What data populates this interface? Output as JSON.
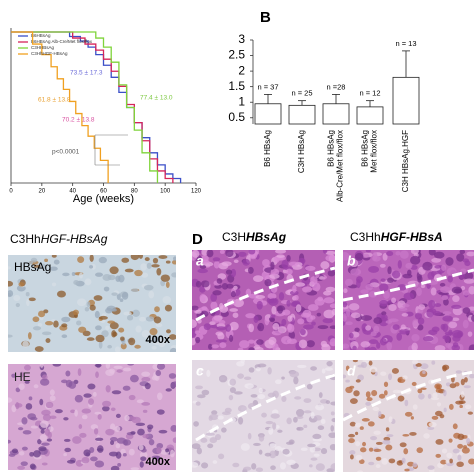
{
  "chart_data": [
    {
      "type": "line",
      "step": true,
      "x_label": "Age (weeks)",
      "xlim": [
        0,
        120
      ],
      "xticks": [
        0,
        20,
        40,
        60,
        80,
        100,
        120
      ],
      "ylim": [
        0,
        100
      ],
      "series": [
        {
          "name": "B6HBsAg",
          "color": "#3b4fc8",
          "x": [
            0,
            38,
            45,
            50,
            55,
            60,
            65,
            70,
            75,
            80,
            85,
            90,
            95,
            100,
            105,
            110
          ],
          "values": [
            100,
            97,
            94,
            90,
            85,
            78,
            70,
            60,
            50,
            40,
            30,
            20,
            12,
            6,
            3,
            0
          ]
        },
        {
          "name": "B6HBsAg Alb-Cre/Met flox/flox",
          "color": "#d6245a",
          "x": [
            0,
            40,
            48,
            55,
            60,
            65,
            70,
            75,
            80,
            85,
            90,
            95,
            100,
            105
          ],
          "values": [
            100,
            96,
            92,
            88,
            82,
            74,
            64,
            52,
            40,
            28,
            16,
            8,
            3,
            0
          ]
        },
        {
          "name": "C3HHBsAg",
          "color": "#7fd43a",
          "x": [
            0,
            55,
            60,
            65,
            70,
            75,
            80,
            85,
            90,
            95
          ],
          "values": [
            100,
            96,
            90,
            80,
            65,
            50,
            35,
            20,
            8,
            0
          ]
        },
        {
          "name": "C3HhHGF-HBsAg",
          "color": "#f0a020",
          "x": [
            0,
            14,
            20,
            26,
            30,
            34,
            38,
            42,
            46,
            50,
            54,
            58,
            63
          ],
          "values": [
            100,
            92,
            85,
            77,
            69,
            62,
            54,
            46,
            38,
            31,
            23,
            15,
            0
          ]
        }
      ],
      "annotations": [
        {
          "text": "73.5 ± 17.3",
          "color": "#6a6ad8"
        },
        {
          "text": "61.8 ± 13.8",
          "color": "#e8a030"
        },
        {
          "text": "70.2 ± 13.8",
          "color": "#d850a0"
        },
        {
          "text": "77.4 ± 13.0",
          "color": "#7cc840"
        },
        {
          "text": "p<0.0001",
          "color": "#555555"
        }
      ]
    },
    {
      "type": "bar",
      "title": "B",
      "categories": [
        "B6 HBsAg",
        "C3H HBsAg",
        "B6 HBsAg Alb-Cre/Met flox/flox",
        "B6 HBsAg Met flox/flox",
        "C3H HBsAg.HGF"
      ],
      "values": [
        0.95,
        0.9,
        0.95,
        0.85,
        1.8
      ],
      "errors": [
        0.3,
        0.15,
        0.3,
        0.2,
        0.85
      ],
      "n_labels": [
        "n = 37",
        "n = 25",
        "n =28",
        "n = 12",
        "n = 13"
      ],
      "ylim": [
        0.3,
        3
      ],
      "yticks": [
        0.5,
        1,
        1.5,
        2,
        2.5,
        3
      ],
      "color": "#ffffff"
    }
  ],
  "panel_c": {
    "prefix": "C3Hh",
    "italic": "HGF-HBsAg",
    "images": [
      {
        "stain": "HBsAg",
        "magnification": "400x"
      },
      {
        "stain": "HE",
        "magnification": "400x"
      }
    ]
  },
  "panel_d": {
    "label": "D",
    "columns": [
      {
        "prefix": "C3H",
        "italic": "HBsAg"
      },
      {
        "prefix": "C3Hh",
        "italic": "HGF-HBsA"
      }
    ],
    "images": [
      "a",
      "b",
      "c",
      "d"
    ]
  }
}
